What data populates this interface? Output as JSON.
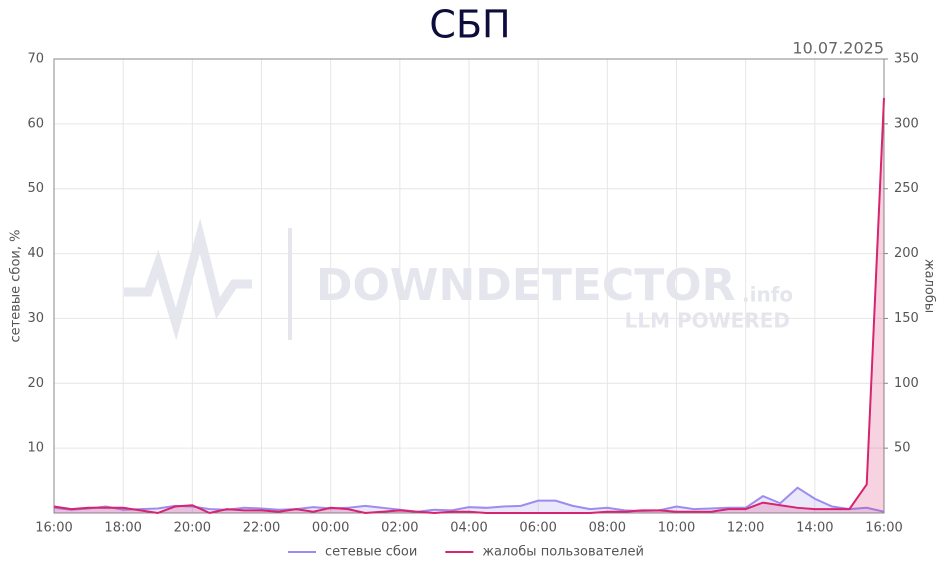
{
  "chart_data": {
    "type": "line",
    "title": "СБП",
    "subtitle": "10.07.2025",
    "ylabel": "сетевые сбои, %",
    "y2label": "жалобы",
    "watermark": {
      "text": "DOWNDETECTOR",
      "suffix": ".info",
      "tagline": "LLM POWERED"
    },
    "categories": [
      "16:00",
      null,
      null,
      null,
      "18:00",
      null,
      null,
      null,
      "20:00",
      null,
      null,
      null,
      "22:00",
      null,
      null,
      null,
      "00:00",
      null,
      null,
      null,
      "02:00",
      null,
      null,
      null,
      "04:00",
      null,
      null,
      null,
      "06:00",
      null,
      null,
      null,
      "08:00",
      null,
      null,
      null,
      "10:00",
      null,
      null,
      null,
      "12:00",
      null,
      null,
      null,
      "14:00",
      null,
      null,
      null,
      "16:00"
    ],
    "ylim": [
      0,
      70
    ],
    "yticks": [
      10,
      20,
      30,
      40,
      50,
      60,
      70
    ],
    "y2lim": [
      0,
      350
    ],
    "y2ticks": [
      50,
      100,
      150,
      200,
      250,
      300,
      350
    ],
    "grid": true,
    "series": [
      {
        "name": "сетевые сбои",
        "color": "#9b8cf0",
        "axis": "y",
        "values": [
          0.8,
          0.5,
          0.7,
          1.0,
          0.5,
          0.6,
          0.7,
          1.1,
          1.0,
          0.6,
          0.5,
          0.8,
          0.7,
          0.5,
          0.6,
          0.9,
          0.7,
          0.8,
          1.1,
          0.8,
          0.5,
          0.2,
          0.5,
          0.4,
          0.9,
          0.8,
          1.0,
          1.1,
          1.9,
          1.9,
          1.1,
          0.6,
          0.8,
          0.4,
          0.3,
          0.4,
          1.0,
          0.6,
          0.7,
          0.8,
          0.8,
          2.6,
          1.5,
          3.9,
          2.2,
          1.0,
          0.6,
          0.8,
          0.2
        ]
      },
      {
        "name": "жалобы пользователей",
        "color": "#d6246e",
        "axis": "y2",
        "values": [
          5,
          3,
          4,
          4,
          4,
          2,
          0,
          5,
          6,
          0,
          3,
          2,
          2,
          1,
          3,
          1,
          4,
          3,
          0,
          1,
          2,
          1,
          0,
          1,
          1,
          0,
          0,
          0,
          0,
          0,
          0,
          0,
          1,
          1,
          2,
          2,
          1,
          1,
          1,
          3,
          3,
          8,
          6,
          4,
          3,
          3,
          3,
          22,
          320
        ]
      }
    ]
  }
}
